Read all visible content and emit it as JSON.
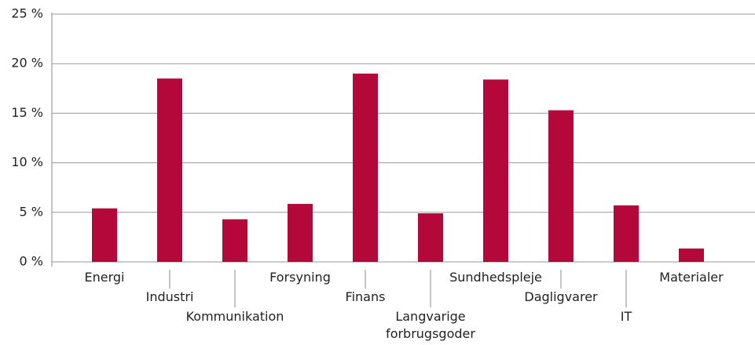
{
  "chart_data": {
    "type": "bar",
    "categories": [
      "Energi",
      "Industri",
      "Kommunikation",
      "Forsyning",
      "Finans",
      "Langvarige\nforbrugsgoder",
      "Sundhedspleje",
      "Dagligvarer",
      "IT",
      "Materialer"
    ],
    "values": [
      5.4,
      18.5,
      4.3,
      5.85,
      19.0,
      4.9,
      18.4,
      15.3,
      5.7,
      1.35
    ],
    "color": "#b5083a",
    "ylim": [
      0,
      25
    ],
    "yticks": [
      {
        "value": 0,
        "label": "0 %"
      },
      {
        "value": 5,
        "label": "5 %"
      },
      {
        "value": 10,
        "label": "10 %"
      },
      {
        "value": 15,
        "label": "15 %"
      },
      {
        "value": 20,
        "label": "20 %"
      },
      {
        "value": 25,
        "label": "25 %"
      }
    ],
    "grid": true
  }
}
